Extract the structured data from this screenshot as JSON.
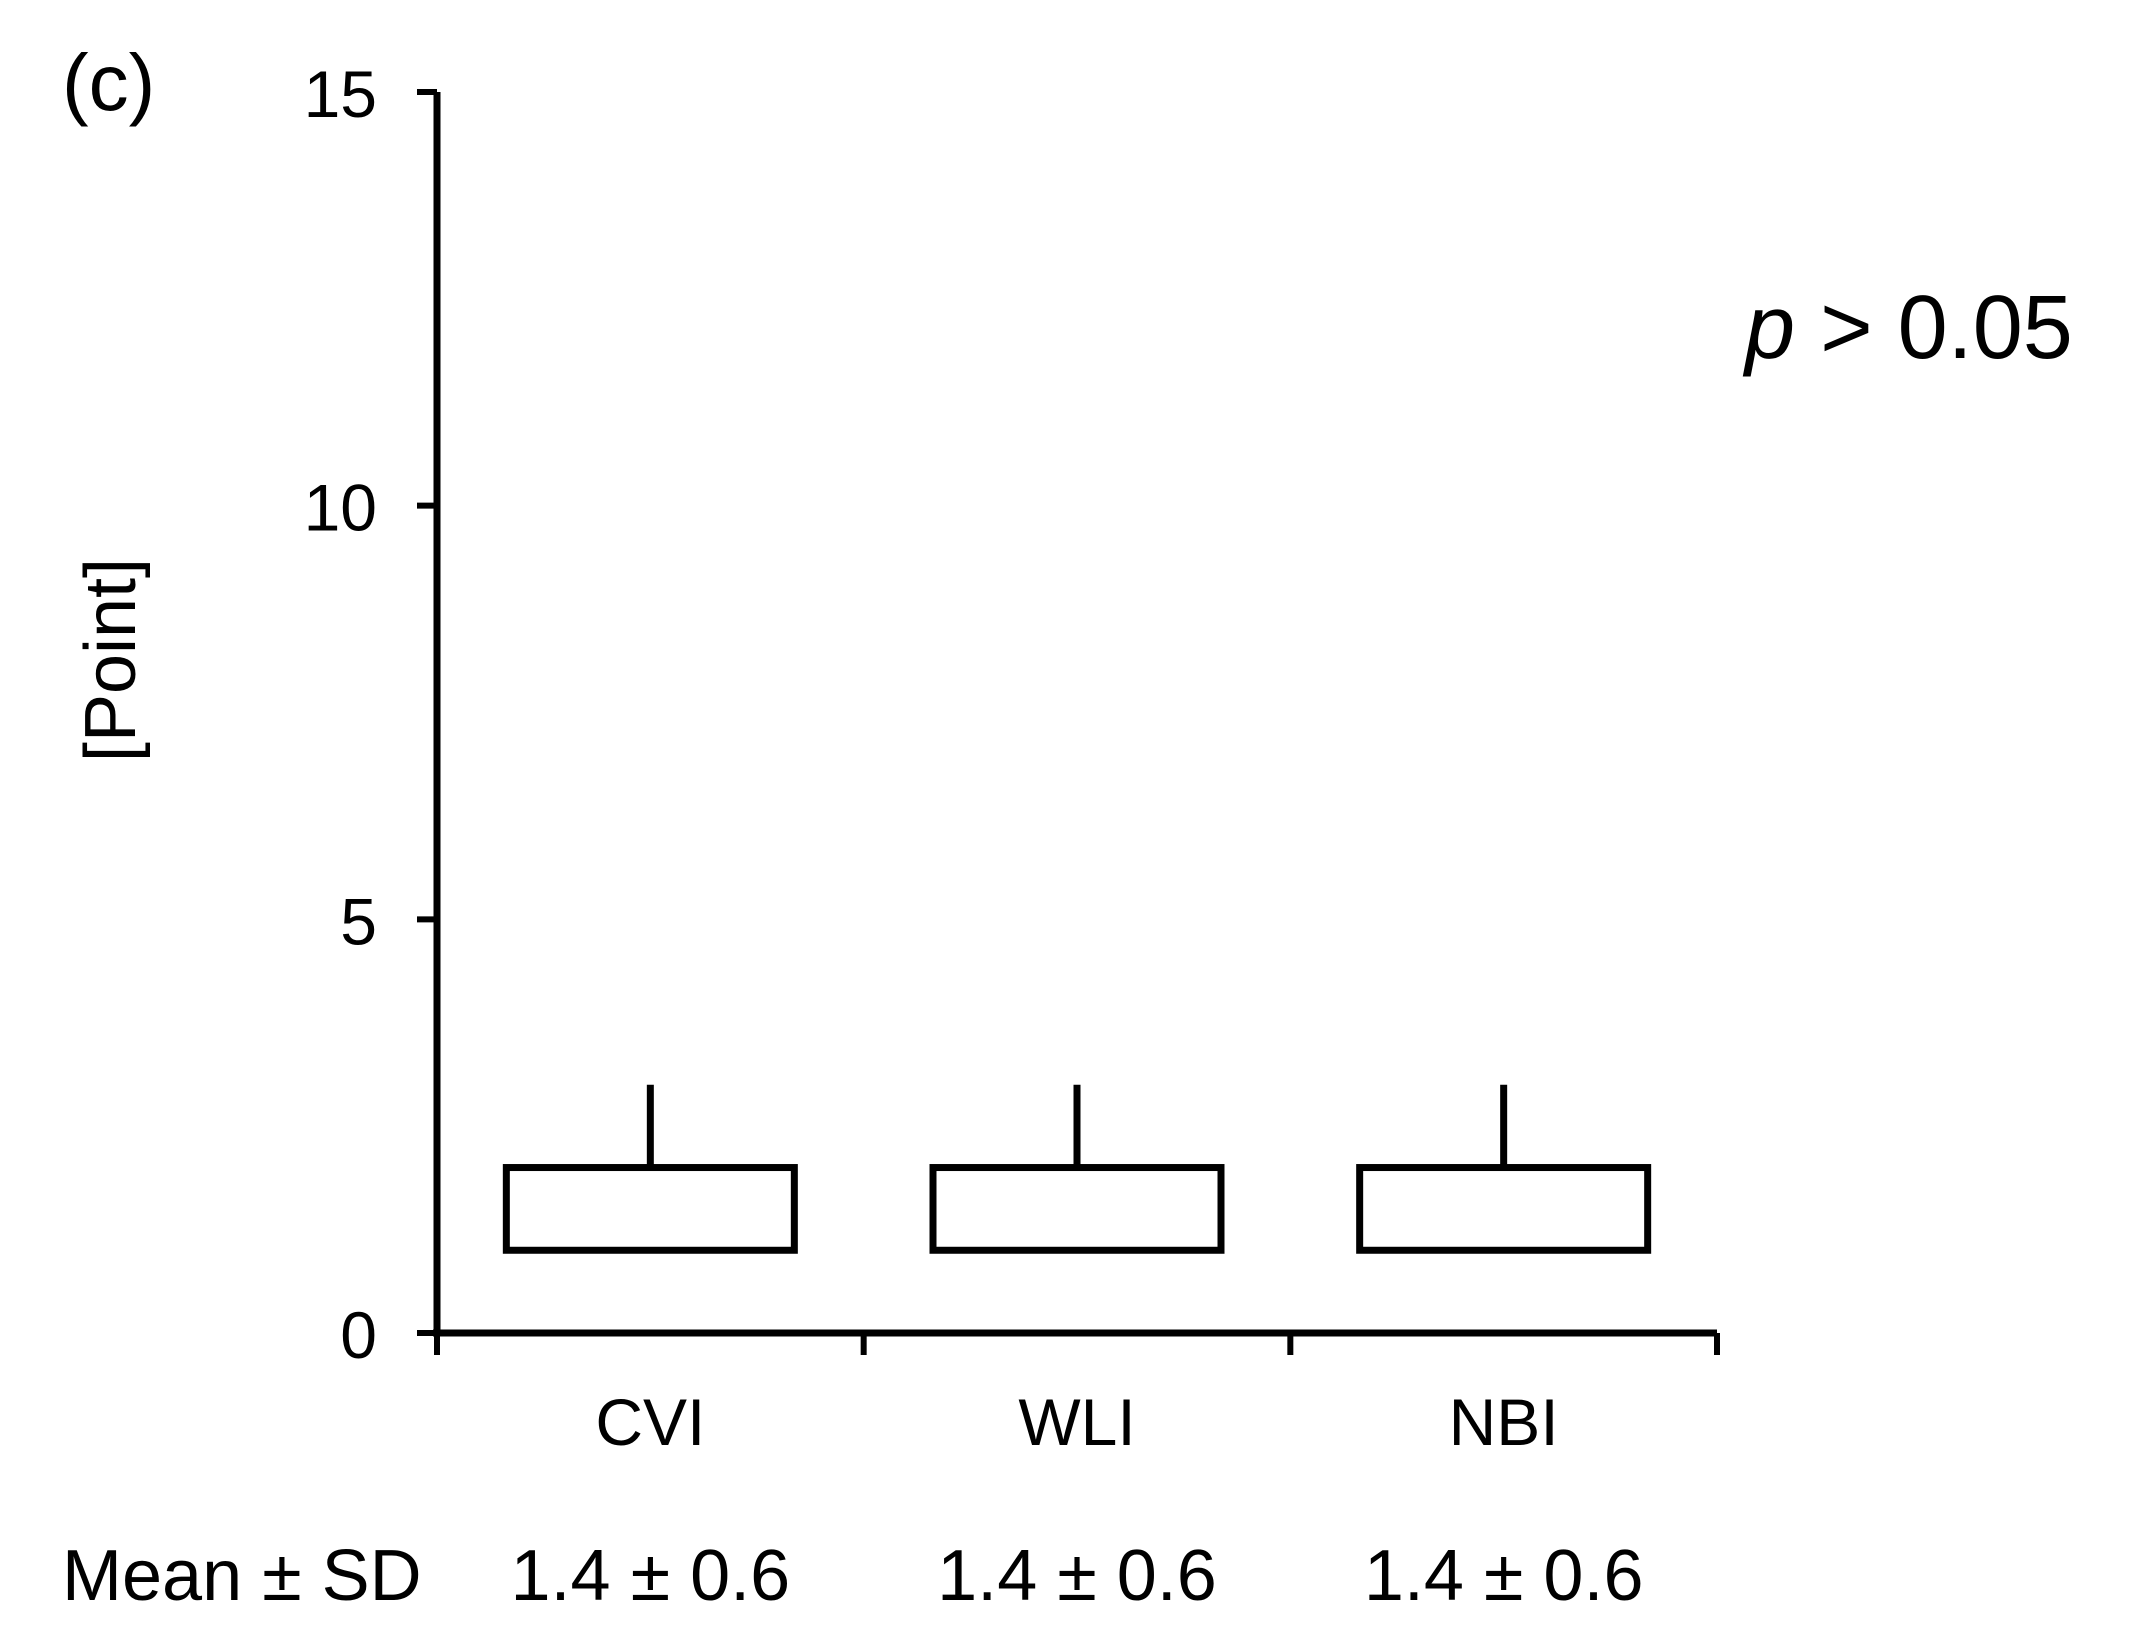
{
  "chart_data": {
    "type": "bar",
    "panel_label": "(c)",
    "ylabel": "[Point]",
    "ylim": [
      0,
      15
    ],
    "yticks": [
      0,
      5,
      10,
      15
    ],
    "categories": [
      "CVI",
      "WLI",
      "NBI"
    ],
    "boxes": [
      {
        "category": "CVI",
        "low": 1,
        "high": 2,
        "whisker_high": 3
      },
      {
        "category": "WLI",
        "low": 1,
        "high": 2,
        "whisker_high": 3
      },
      {
        "category": "NBI",
        "low": 1,
        "high": 2,
        "whisker_high": 3
      }
    ],
    "p_value": {
      "symbol": "p",
      "text": " > 0.05"
    },
    "summary_label": "Mean ± SD",
    "summary_values": [
      "1.4 ± 0.6",
      "1.4 ± 0.6",
      "1.4 ± 0.6"
    ]
  }
}
